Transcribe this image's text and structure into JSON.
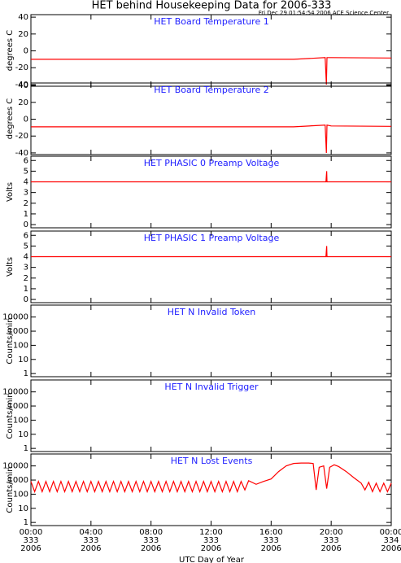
{
  "title": "HET behind Housekeeping Data for 2006-333",
  "subtitle": "Fri Dec 29 01:54:54 2006 ACE Science Center",
  "chart_data": [
    {
      "type": "line",
      "title": "HET Board Temperature 1",
      "ylabel": "degrees C",
      "color": "#ff0000",
      "log": false,
      "ylim": [
        -42,
        43
      ],
      "yticks": [
        -40,
        -20,
        0,
        20,
        40
      ],
      "xlim": [
        0,
        24
      ],
      "xticks": [
        0,
        4,
        8,
        12,
        16,
        20,
        24
      ],
      "x": [
        0,
        17.5,
        19.6,
        19.68,
        19.72,
        20,
        24
      ],
      "values": [
        -10,
        -10,
        -8,
        -40,
        -8,
        -8,
        -8.5
      ]
    },
    {
      "type": "line",
      "title": "HET Board Temperature 2",
      "ylabel": "degrees C",
      "color": "#ff0000",
      "log": false,
      "ylim": [
        -42,
        43
      ],
      "yticks": [
        -40,
        -20,
        0,
        20,
        40
      ],
      "xlim": [
        0,
        24
      ],
      "xticks": [
        0,
        4,
        8,
        12,
        16,
        20,
        24
      ],
      "x": [
        0,
        17.5,
        19.6,
        19.68,
        19.72,
        20,
        24
      ],
      "values": [
        -9,
        -9,
        -7,
        -40,
        -7,
        -8,
        -8.5
      ]
    },
    {
      "type": "line",
      "title": "HET PHASIC 0 Preamp Voltage",
      "ylabel": "Volts",
      "color": "#ff0000",
      "log": false,
      "ylim": [
        -0.3,
        6.4
      ],
      "yticks": [
        0,
        1,
        2,
        3,
        4,
        5,
        6
      ],
      "xlim": [
        0,
        24
      ],
      "xticks": [
        0,
        4,
        8,
        12,
        16,
        20,
        24
      ],
      "x": [
        0,
        19.65,
        19.7,
        19.72,
        19.75,
        24
      ],
      "values": [
        4,
        4,
        5,
        4,
        4,
        4
      ]
    },
    {
      "type": "line",
      "title": "HET PHASIC 1 Preamp Voltage",
      "ylabel": "Volts",
      "color": "#ff0000",
      "log": false,
      "ylim": [
        -0.3,
        6.4
      ],
      "yticks": [
        0,
        1,
        2,
        3,
        4,
        5,
        6
      ],
      "xlim": [
        0,
        24
      ],
      "xticks": [
        0,
        4,
        8,
        12,
        16,
        20,
        24
      ],
      "x": [
        0,
        19.65,
        19.7,
        19.72,
        19.75,
        24
      ],
      "values": [
        4,
        4,
        5,
        4,
        4,
        4
      ]
    },
    {
      "type": "line",
      "title": "HET N Invalid Token",
      "ylabel": "Counts/min",
      "color": "#ff0000",
      "log": true,
      "ylim": [
        0.6,
        70000
      ],
      "yticks": [
        1,
        10,
        100,
        1000,
        10000
      ],
      "xlim": [
        0,
        24
      ],
      "xticks": [
        0,
        4,
        8,
        12,
        16,
        20,
        24
      ],
      "x": [],
      "values": []
    },
    {
      "type": "line",
      "title": "HET N Invalid Trigger",
      "ylabel": "Counts/min",
      "color": "#ff0000",
      "log": true,
      "ylim": [
        0.6,
        70000
      ],
      "yticks": [
        1,
        10,
        100,
        1000,
        10000
      ],
      "xlim": [
        0,
        24
      ],
      "xticks": [
        0,
        4,
        8,
        12,
        16,
        20,
        24
      ],
      "x": [],
      "values": []
    },
    {
      "type": "line",
      "title": "HET N Lost Events",
      "ylabel": "Counts/min",
      "color": "#ff0000",
      "log": true,
      "xlabel": "UTC Day of Year",
      "ylim": [
        0.6,
        70000
      ],
      "yticks": [
        1,
        10,
        100,
        1000,
        10000
      ],
      "xlim": [
        0,
        24
      ],
      "xticks": [
        {
          "value": 0,
          "label": [
            "00:00",
            "333",
            "2006"
          ]
        },
        {
          "value": 4,
          "label": [
            "04:00",
            "333",
            "2006"
          ]
        },
        {
          "value": 8,
          "label": [
            "08:00",
            "333",
            "2006"
          ]
        },
        {
          "value": 12,
          "label": [
            "12:00",
            "333",
            "2006"
          ]
        },
        {
          "value": 16,
          "label": [
            "16:00",
            "333",
            "2006"
          ]
        },
        {
          "value": 20,
          "label": [
            "20:00",
            "333",
            "2006"
          ]
        },
        {
          "value": 24,
          "label": [
            "00:00",
            "334",
            "2006"
          ]
        }
      ],
      "x": [
        0,
        0.25,
        0.5,
        0.75,
        1,
        1.25,
        1.5,
        1.75,
        2,
        2.25,
        2.5,
        2.75,
        3,
        3.25,
        3.5,
        3.75,
        4,
        4.25,
        4.5,
        4.75,
        5,
        5.25,
        5.5,
        5.75,
        6,
        6.25,
        6.5,
        6.75,
        7,
        7.25,
        7.5,
        7.75,
        8,
        8.25,
        8.5,
        8.75,
        9,
        9.25,
        9.5,
        9.75,
        10,
        10.25,
        10.5,
        10.75,
        11,
        11.25,
        11.5,
        11.75,
        12,
        12.25,
        12.5,
        12.75,
        13,
        13.25,
        13.5,
        13.75,
        14,
        14.25,
        14.5,
        15,
        15.5,
        16,
        16.5,
        17,
        17.5,
        18,
        18.5,
        18.8,
        19,
        19.2,
        19.5,
        19.7,
        19.9,
        20.2,
        20.5,
        21,
        21.5,
        22,
        22.25,
        22.5,
        22.75,
        23,
        23.25,
        23.5,
        23.75,
        24
      ],
      "values": [
        800,
        150,
        800,
        150,
        800,
        150,
        800,
        150,
        800,
        150,
        800,
        150,
        800,
        150,
        800,
        150,
        800,
        150,
        800,
        150,
        800,
        150,
        800,
        150,
        800,
        150,
        800,
        150,
        800,
        150,
        800,
        150,
        800,
        150,
        800,
        150,
        800,
        150,
        800,
        150,
        800,
        150,
        800,
        150,
        800,
        150,
        800,
        150,
        800,
        150,
        800,
        150,
        800,
        150,
        800,
        150,
        800,
        200,
        900,
        500,
        800,
        1200,
        4000,
        10000,
        15000,
        16000,
        16000,
        15000,
        200,
        8000,
        10000,
        250,
        8000,
        12000,
        9000,
        4000,
        1500,
        600,
        200,
        700,
        150,
        600,
        150,
        600,
        150,
        600
      ]
    }
  ]
}
